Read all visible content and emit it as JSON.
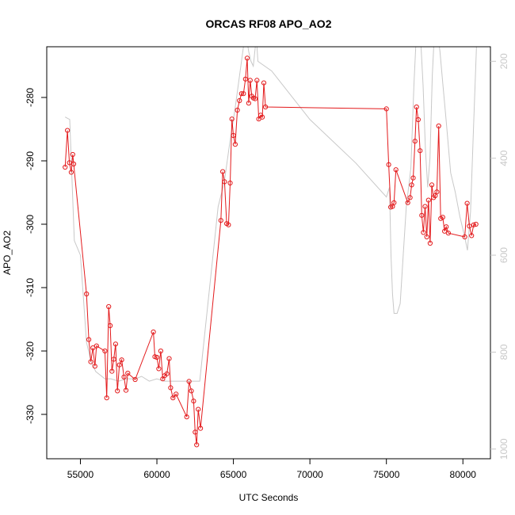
{
  "chart_data": {
    "type": "line",
    "title": "ORCAS RF08 APO_AO2",
    "xlabel": "UTC Seconds",
    "ylabel": "APO_AO2",
    "xlim": [
      52800,
      81800
    ],
    "ylim": [
      -337,
      -272
    ],
    "x_ticks": [
      55000,
      60000,
      65000,
      70000,
      75000,
      80000
    ],
    "y_ticks": [
      -330,
      -320,
      -310,
      -300,
      -290,
      -280
    ],
    "x_tick_labels": [
      "55000",
      "60000",
      "65000",
      "70000",
      "75000",
      "80000"
    ],
    "y_tick_labels": [
      "-330",
      "-320",
      "-310",
      "-300",
      "-290",
      "-280"
    ],
    "right_axis": {
      "ylim": [
        1020,
        170
      ],
      "ticks": [
        200,
        400,
        600,
        800,
        1000
      ],
      "tick_labels": [
        "200",
        "400",
        "600",
        "800",
        "1000"
      ],
      "color": "#c8c8c8"
    },
    "grid": false,
    "series": [
      {
        "style": "line-points",
        "color": "#e31a1c",
        "axis": "left",
        "x": [
          54000,
          54150,
          54280,
          54400,
          54500,
          54560,
          55400,
          55550,
          55680,
          55820,
          55950,
          56050,
          56600,
          56720,
          56850,
          56950,
          57060,
          57180,
          57300,
          57420,
          57550,
          57700,
          57850,
          57980,
          58100,
          58580,
          59770,
          59870,
          60000,
          60120,
          60250,
          60380,
          60500,
          60650,
          60800,
          60900,
          61050,
          61250,
          61950,
          62100,
          62250,
          62400,
          62500,
          62600,
          62700,
          62850,
          64180,
          64300,
          64420,
          64560,
          64680,
          64790,
          64900,
          65000,
          65120,
          65260,
          65400,
          65530,
          65660,
          65790,
          65900,
          66000,
          66100,
          66200,
          66310,
          66420,
          66540,
          66660,
          66780,
          66890,
          66990,
          67100,
          75000,
          75150,
          75280,
          75400,
          75500,
          75620,
          76400,
          76550,
          76650,
          76750,
          76870,
          76970,
          77080,
          77200,
          77310,
          77420,
          77530,
          77640,
          77750,
          77860,
          77970,
          78080,
          78190,
          78300,
          78420,
          78550,
          78680,
          78800,
          78910,
          79050,
          80120,
          80280,
          80420,
          80570,
          80700,
          80850
        ],
        "y": [
          -291,
          -285.2,
          -290.3,
          -291.8,
          -289,
          -290.5,
          -311,
          -318.2,
          -321.7,
          -319.5,
          -322.4,
          -319.2,
          -320,
          -327.4,
          -313,
          -316,
          -323.2,
          -321.3,
          -318.9,
          -326.3,
          -322.2,
          -321.4,
          -324.1,
          -326.2,
          -323.5,
          -324.5,
          -317,
          -320.9,
          -321,
          -322.8,
          -320,
          -324.4,
          -323.9,
          -323.6,
          -321.2,
          -325.8,
          -327.4,
          -326.8,
          -330.4,
          -324.8,
          -326.3,
          -327.9,
          -332.8,
          -334.8,
          -329.2,
          -332.2,
          -299.4,
          -291.7,
          -293.3,
          -299.9,
          -300.1,
          -293.5,
          -283.4,
          -286,
          -287.4,
          -282,
          -280.5,
          -279.4,
          -279.4,
          -277.1,
          -273.8,
          -280.9,
          -277.3,
          -279.8,
          -280.1,
          -280.2,
          -277.3,
          -283.4,
          -282.8,
          -283.1,
          -277.7,
          -281.5,
          -281.8,
          -290.6,
          -297.3,
          -297.2,
          -296.6,
          -291.4,
          -296.6,
          -295.8,
          -293.8,
          -292.7,
          -286.9,
          -281.5,
          -283.5,
          -288.4,
          -298.6,
          -301.3,
          -297.2,
          -302,
          -296.2,
          -303,
          -293.8,
          -295.8,
          -295.5,
          -294.9,
          -284.5,
          -299.1,
          -298.9,
          -301.1,
          -300.4,
          -301.4,
          -302,
          -296.7,
          -300.3,
          -301.8,
          -300.1,
          -300
        ]
      },
      {
        "style": "line",
        "color": "#c8c8c8",
        "axis": "right",
        "x": [
          54000,
          54300,
          54600,
          55000,
          55400,
          55700,
          56000,
          56600,
          57000,
          57500,
          58000,
          58600,
          59000,
          59500,
          60000,
          60500,
          61000,
          61500,
          62000,
          62500,
          62800,
          63400,
          64000,
          64400,
          64800,
          65100,
          65400,
          65700,
          65850,
          66000,
          66150,
          66300,
          66400,
          66500,
          66600,
          67500,
          70000,
          73000,
          75000,
          75200,
          75300,
          75400,
          75500,
          75700,
          75900,
          76100,
          76300,
          76600,
          76800,
          76950,
          77100,
          77250,
          77400,
          77550,
          77700,
          77850,
          78000,
          78200,
          78500,
          78700,
          78900,
          79200,
          79500,
          79800,
          80100,
          80300,
          80500,
          80700,
          80900
        ],
        "y": [
          315,
          320,
          570,
          600,
          780,
          820,
          840,
          855,
          855,
          860,
          855,
          855,
          850,
          860,
          855,
          860,
          860,
          860,
          860,
          860,
          860,
          680,
          500,
          450,
          360,
          300,
          230,
          160,
          150,
          180,
          200,
          210,
          180,
          150,
          200,
          220,
          320,
          410,
          480,
          460,
          600,
          680,
          720,
          720,
          700,
          600,
          500,
          420,
          250,
          150,
          130,
          160,
          250,
          380,
          460,
          400,
          230,
          100,
          180,
          250,
          320,
          430,
          470,
          520,
          560,
          590,
          510,
          330,
          160
        ]
      }
    ]
  }
}
